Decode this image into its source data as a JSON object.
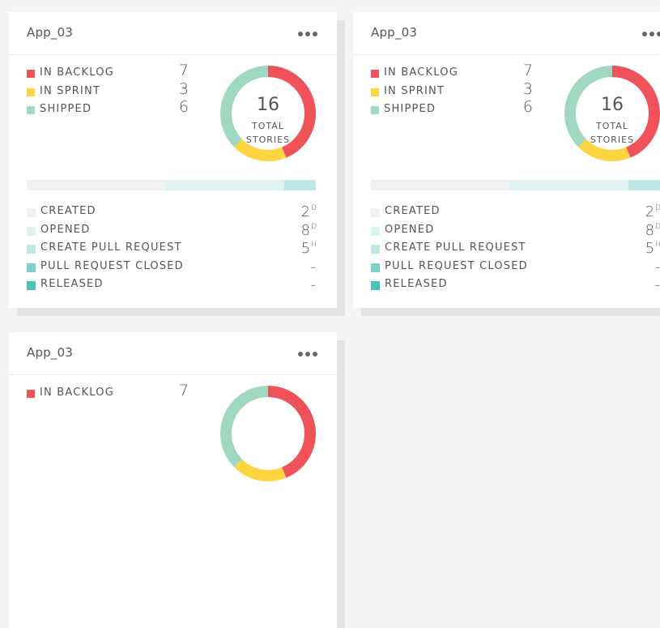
{
  "colors": {
    "backlog": "#f0525a",
    "sprint": "#ffd441",
    "shipped": "#9fd8c0",
    "created": "#f1f1f1",
    "opened": "#dff2f1",
    "create_pr": "#bde6e4",
    "pr_closed": "#7fd0ca",
    "released": "#4cc3b8"
  },
  "cards": [
    {
      "title": "App_03",
      "menu_icon": "more-horizontal-icon",
      "legend": [
        {
          "label": "IN BACKLOG",
          "count": "7",
          "color": "#f0525a"
        },
        {
          "label": "IN SPRINT",
          "count": "3",
          "color": "#ffd441"
        },
        {
          "label": "SHIPPED",
          "count": "6",
          "color": "#9fd8c0"
        }
      ],
      "donut": {
        "total": "16",
        "caption_line1": "TOTAL",
        "caption_line2": "STORIES",
        "values": [
          7,
          3,
          6
        ]
      },
      "progress": [
        {
          "value": 0.48,
          "color": "#f1f1f1"
        },
        {
          "value": 0.41,
          "color": "#dff2f1"
        },
        {
          "value": 0.11,
          "color": "#bde6e4"
        }
      ],
      "stages": [
        {
          "label": "CREATED",
          "value": "2",
          "unit": "D",
          "color": "#f1f1f1"
        },
        {
          "label": "OPENED",
          "value": "8",
          "unit": "D",
          "color": "#dff2f1"
        },
        {
          "label": "CREATE PULL REQUEST",
          "value": "5",
          "unit": "H",
          "color": "#bde6e4"
        },
        {
          "label": "PULL REQUEST CLOSED",
          "value": "-",
          "unit": "",
          "color": "#7fd0ca"
        },
        {
          "label": "RELEASED",
          "value": "-",
          "unit": "",
          "color": "#4cc3b8"
        }
      ]
    },
    {
      "title": "App_03",
      "menu_icon": "more-horizontal-icon",
      "legend": [
        {
          "label": "IN BACKLOG",
          "count": "7",
          "color": "#f0525a"
        },
        {
          "label": "IN SPRINT",
          "count": "3",
          "color": "#ffd441"
        },
        {
          "label": "SHIPPED",
          "count": "6",
          "color": "#9fd8c0"
        }
      ],
      "donut": {
        "total": "16",
        "caption_line1": "TOTAL",
        "caption_line2": "STORIES",
        "values": [
          7,
          3,
          6
        ]
      },
      "progress": [
        {
          "value": 0.48,
          "color": "#f1f1f1"
        },
        {
          "value": 0.41,
          "color": "#dff2f1"
        },
        {
          "value": 0.11,
          "color": "#bde6e4"
        }
      ],
      "stages": [
        {
          "label": "CREATED",
          "value": "2",
          "unit": "D",
          "color": "#f1f1f1"
        },
        {
          "label": "OPENED",
          "value": "8",
          "unit": "D",
          "color": "#dff2f1"
        },
        {
          "label": "CREATE PULL REQUEST",
          "value": "5",
          "unit": "H",
          "color": "#bde6e4"
        },
        {
          "label": "PULL REQUEST CLOSED",
          "value": "-",
          "unit": "",
          "color": "#7fd0ca"
        },
        {
          "label": "RELEASED",
          "value": "-",
          "unit": "",
          "color": "#4cc3b8"
        }
      ]
    },
    {
      "title": "App_03",
      "menu_icon": "more-horizontal-icon",
      "legend": [
        {
          "label": "IN BACKLOG",
          "count": "7",
          "color": "#f0525a"
        }
      ],
      "donut": {
        "values": [
          7,
          3,
          6
        ]
      }
    }
  ]
}
